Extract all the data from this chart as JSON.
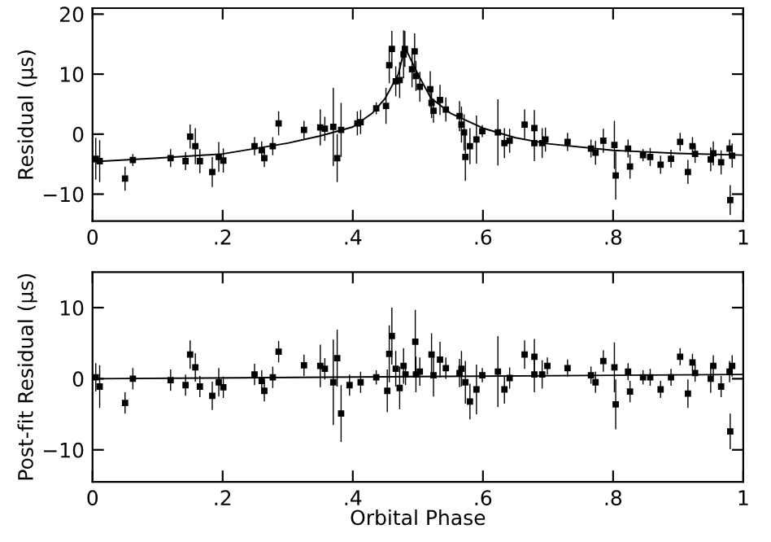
{
  "chart_data": [
    {
      "type": "scatter",
      "ylabel": "Residual (μs)",
      "xlim": [
        0,
        1
      ],
      "ylim": [
        -14.5,
        21
      ],
      "xticks": [
        {
          "value": 0,
          "label": "0"
        },
        {
          "value": 0.2,
          "label": ".2"
        },
        {
          "value": 0.4,
          "label": ".4"
        },
        {
          "value": 0.6,
          "label": ".6"
        },
        {
          "value": 0.8,
          "label": ".8"
        },
        {
          "value": 1,
          "label": "1"
        }
      ],
      "yticks": [
        {
          "value": -10,
          "label": "−10"
        },
        0,
        10,
        20
      ],
      "grid": false,
      "series": [
        {
          "marker": "square",
          "color": "#000000",
          "x": [
            0.005,
            0.011,
            0.05,
            0.062,
            0.12,
            0.143,
            0.15,
            0.158,
            0.165,
            0.184,
            0.194,
            0.201,
            0.249,
            0.26,
            0.264,
            0.277,
            0.286,
            0.325,
            0.35,
            0.357,
            0.37,
            0.376,
            0.382,
            0.407,
            0.412,
            0.436,
            0.451,
            0.456,
            0.46,
            0.466,
            0.472,
            0.478,
            0.48,
            0.491,
            0.495,
            0.497,
            0.503,
            0.519,
            0.521,
            0.524,
            0.534,
            0.543,
            0.564,
            0.567,
            0.571,
            0.573,
            0.58,
            0.59,
            0.599,
            0.623,
            0.633,
            0.641,
            0.664,
            0.679,
            0.679,
            0.691,
            0.696,
            0.73,
            0.766,
            0.773,
            0.785,
            0.802,
            0.804,
            0.823,
            0.826,
            0.846,
            0.857,
            0.873,
            0.889,
            0.903,
            0.915,
            0.922,
            0.926,
            0.95,
            0.954,
            0.966,
            0.979,
            0.98,
            0.983
          ],
          "values": [
            -4.1,
            -4.5,
            -7.4,
            -4.3,
            -4,
            -4.5,
            -0.4,
            -2,
            -4.5,
            -6.3,
            -3.8,
            -4.4,
            -2,
            -2.7,
            -4,
            -2,
            1.8,
            0.7,
            1.1,
            0.9,
            1.2,
            -4,
            0.7,
            1.8,
            2,
            4.3,
            4.7,
            11.5,
            14.2,
            8.8,
            9,
            13.3,
            14.2,
            10.8,
            13.8,
            9.7,
            7.9,
            7.5,
            5.2,
            3.9,
            5.7,
            4.1,
            3,
            1.6,
            0.3,
            -3.8,
            -2,
            -0.9,
            0.5,
            0.3,
            -1.5,
            -1.1,
            1.6,
            1,
            -1.5,
            -1.5,
            -0.9,
            -1.3,
            -2.4,
            -3.1,
            -1.1,
            -1.8,
            -6.9,
            -2.4,
            -5.4,
            -3.5,
            -3.8,
            -5.1,
            -4.1,
            -1.3,
            -6.3,
            -2,
            -3.3,
            -4.2,
            -3.2,
            -4.7,
            -2.4,
            -11,
            -3.6
          ],
          "errors": [
            3.5,
            3.5,
            2,
            1,
            1.5,
            1.5,
            2,
            3,
            2,
            2.5,
            2.5,
            2,
            1.5,
            1.5,
            1.5,
            1.5,
            2,
            1.5,
            3,
            2,
            6.5,
            4,
            4.5,
            2,
            2,
            1,
            3,
            3,
            3,
            2.5,
            3,
            4,
            3,
            3,
            3,
            2.5,
            2.5,
            3,
            2.5,
            2,
            2.5,
            2,
            2.5,
            3,
            3,
            4,
            3,
            4,
            1,
            5.5,
            2.5,
            2,
            2.5,
            3,
            3,
            2.5,
            2,
            1.5,
            1.5,
            2,
            2,
            4,
            4,
            1.5,
            2,
            1,
            1.5,
            1.5,
            1.5,
            1.5,
            2,
            1.5,
            1.5,
            2,
            2,
            2,
            1.5,
            2.5,
            2
          ]
        },
        {
          "type": "line",
          "color": "#000000",
          "line_style": "solid",
          "x": [
            0,
            0.1,
            0.2,
            0.3,
            0.35,
            0.4,
            0.43,
            0.45,
            0.47,
            0.48,
            0.5,
            0.52,
            0.55,
            0.6,
            0.65,
            0.7,
            0.8,
            0.9,
            1
          ],
          "values": [
            -4.6,
            -4,
            -3.3,
            -1.5,
            -0.3,
            1.2,
            3.5,
            6,
            10,
            14.5,
            10,
            6,
            3.5,
            1,
            -0.6,
            -1.6,
            -2.7,
            -3.2,
            -3.5
          ]
        }
      ]
    },
    {
      "type": "scatter",
      "xlabel": "Orbital Phase",
      "ylabel": "Post-fit Residual (μs)",
      "xlim": [
        0,
        1
      ],
      "ylim": [
        -14.5,
        15
      ],
      "xticks": [
        {
          "value": 0,
          "label": "0"
        },
        {
          "value": 0.2,
          "label": ".2"
        },
        {
          "value": 0.4,
          "label": ".4"
        },
        {
          "value": 0.6,
          "label": ".6"
        },
        {
          "value": 0.8,
          "label": ".8"
        },
        {
          "value": 1,
          "label": "1"
        }
      ],
      "yticks": [
        {
          "value": -10,
          "label": "−10"
        },
        0,
        10
      ],
      "grid": false,
      "series": [
        {
          "marker": "square",
          "color": "#000000",
          "x": [
            0.005,
            0.011,
            0.05,
            0.062,
            0.12,
            0.143,
            0.15,
            0.158,
            0.165,
            0.184,
            0.194,
            0.201,
            0.249,
            0.26,
            0.264,
            0.277,
            0.286,
            0.325,
            0.35,
            0.357,
            0.37,
            0.376,
            0.382,
            0.395,
            0.412,
            0.436,
            0.453,
            0.456,
            0.46,
            0.466,
            0.472,
            0.478,
            0.481,
            0.496,
            0.497,
            0.503,
            0.521,
            0.524,
            0.534,
            0.543,
            0.564,
            0.567,
            0.573,
            0.58,
            0.59,
            0.599,
            0.623,
            0.633,
            0.641,
            0.664,
            0.679,
            0.679,
            0.691,
            0.699,
            0.73,
            0.766,
            0.773,
            0.785,
            0.802,
            0.804,
            0.823,
            0.826,
            0.846,
            0.857,
            0.873,
            0.889,
            0.903,
            0.915,
            0.922,
            0.926,
            0.95,
            0.954,
            0.966,
            0.979,
            0.98,
            0.983
          ],
          "values": [
            0.2,
            -1.1,
            -3.4,
            0,
            -0.2,
            -0.9,
            3.4,
            1.6,
            -1.1,
            -2.4,
            -0.5,
            -1.2,
            0.6,
            -0.3,
            -1.7,
            0.2,
            3.8,
            1.9,
            1.8,
            1.4,
            -0.5,
            2.9,
            -4.9,
            -0.9,
            -0.5,
            0.2,
            -1.7,
            3.5,
            6,
            1.4,
            -1.3,
            1.8,
            0.6,
            5.2,
            0.6,
            1,
            3.4,
            0.5,
            2.7,
            1.5,
            0.8,
            1.4,
            -0.5,
            -3.2,
            -1.5,
            0.5,
            1,
            -1.5,
            0.1,
            3.4,
            3.1,
            0.6,
            0.6,
            1.8,
            1.5,
            0.5,
            -0.5,
            2.5,
            1.6,
            -3.6,
            1,
            -1.8,
            0.2,
            0.2,
            -1.5,
            0.2,
            3.1,
            -2.1,
            2.3,
            0.8,
            0,
            1.8,
            -1.1,
            1,
            -7.4,
            1.8
          ],
          "errors": [
            2,
            3,
            1.5,
            1.5,
            1.5,
            1.5,
            2,
            2,
            1.5,
            2,
            2,
            1.5,
            1.5,
            1.5,
            1.5,
            1.5,
            1.5,
            1.5,
            3,
            1.5,
            6,
            4,
            4,
            1.5,
            1.5,
            1,
            3,
            4,
            4,
            2.5,
            3,
            2.5,
            1.5,
            4.5,
            2.5,
            2,
            3,
            3,
            2.5,
            1.5,
            2,
            2.5,
            3,
            2.5,
            3.5,
            1,
            5,
            2,
            1.5,
            2,
            2.5,
            2.5,
            2,
            1.2,
            1.2,
            1.2,
            1.5,
            1.5,
            3.5,
            3.5,
            1.2,
            1.5,
            1,
            1.2,
            1.2,
            1.2,
            1.2,
            2,
            1.2,
            1.2,
            2,
            1.5,
            1.5,
            1.5,
            2.5,
            1.5
          ]
        },
        {
          "type": "line",
          "color": "#000000",
          "line_style": "solid",
          "x": [
            0,
            1
          ],
          "values": [
            0,
            0.6
          ]
        }
      ]
    }
  ]
}
